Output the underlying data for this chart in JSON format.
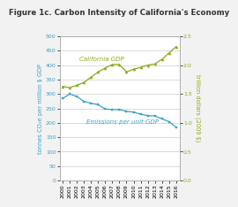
{
  "title": "Figure 1c. Carbon Intensity of California's Economy",
  "years": [
    2000,
    2001,
    2002,
    2003,
    2004,
    2005,
    2006,
    2007,
    2008,
    2009,
    2010,
    2011,
    2012,
    2013,
    2014,
    2015,
    2016
  ],
  "emissions": [
    284,
    300,
    291,
    274,
    268,
    263,
    248,
    246,
    246,
    240,
    237,
    230,
    225,
    224,
    214,
    204,
    185
  ],
  "gdp": [
    1.63,
    1.61,
    1.65,
    1.7,
    1.79,
    1.88,
    1.95,
    2.01,
    2.01,
    1.88,
    1.93,
    1.96,
    2.0,
    2.02,
    2.1,
    2.21,
    2.32
  ],
  "emissions_color": "#3aa0c8",
  "gdp_color": "#8aab1a",
  "left_ylim": [
    0,
    500
  ],
  "right_ylim": [
    0.0,
    2.5
  ],
  "left_yticks": [
    0,
    50,
    100,
    150,
    200,
    250,
    300,
    350,
    400,
    450,
    500
  ],
  "right_yticks": [
    0.0,
    0.5,
    1.0,
    1.5,
    2.0,
    2.5
  ],
  "left_ylabel": "tonnes CO₂e per million $ GDP",
  "right_ylabel": "trillion dollars (2009 $)",
  "background_color": "#f2f2f2",
  "plot_bg_color": "#ffffff",
  "emissions_label": "Emissions per unit GDP",
  "gdp_label": "California GDP",
  "title_fontsize": 6.2,
  "tick_fontsize": 4.5,
  "axis_label_fontsize": 4.8,
  "annot_fontsize": 5.0
}
